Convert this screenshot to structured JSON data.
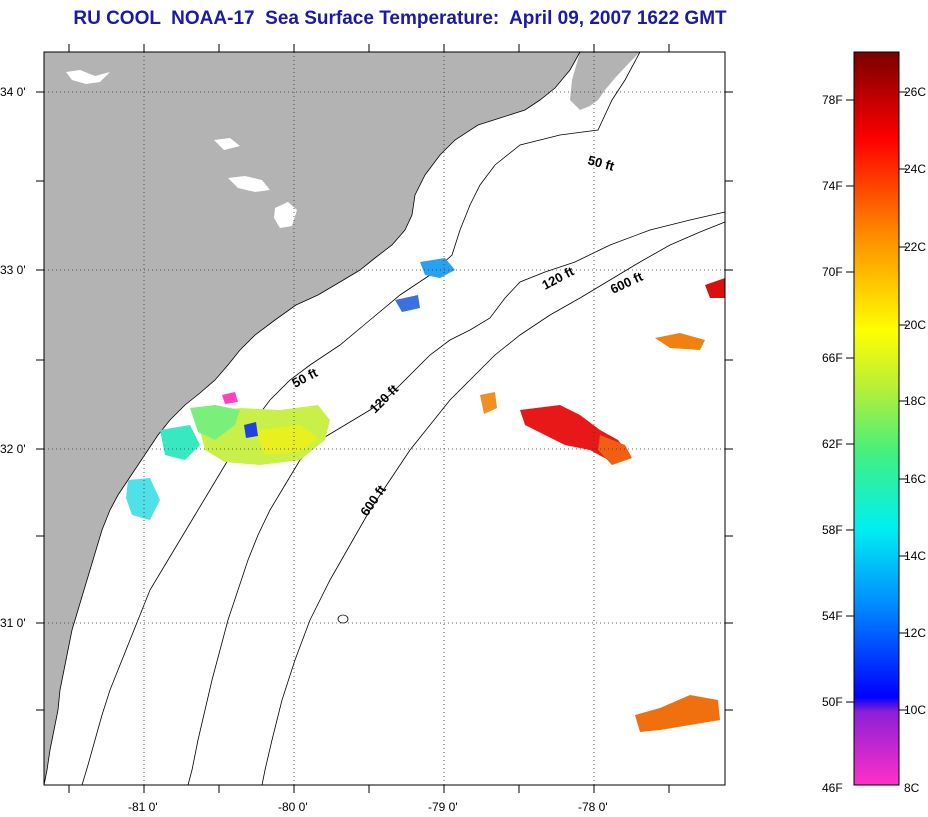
{
  "title": "RU COOL  NOAA-17  Sea Surface Temperature:  April 09, 2007 1622 GMT",
  "map": {
    "lat_labels": [
      "34 0'",
      "33 0'",
      "32 0'",
      "31 0'"
    ],
    "lon_labels": [
      "-81 0'",
      "-80 0'",
      "-79 0'",
      "-78 0'"
    ],
    "contour_labels": [
      "50 ft",
      "120 ft",
      "600 ft",
      "50 ft",
      "120 ft",
      "600 ft"
    ],
    "land_color": "#b3b3b3",
    "water_color": "#ffffff"
  },
  "colorbar": {
    "fahrenheit_labels": [
      "78F",
      "74F",
      "70F",
      "66F",
      "62F",
      "58F",
      "54F",
      "50F",
      "46F"
    ],
    "celsius_labels": [
      "26C",
      "24C",
      "22C",
      "20C",
      "18C",
      "16C",
      "14C",
      "12C",
      "10C",
      "8C"
    ]
  }
}
